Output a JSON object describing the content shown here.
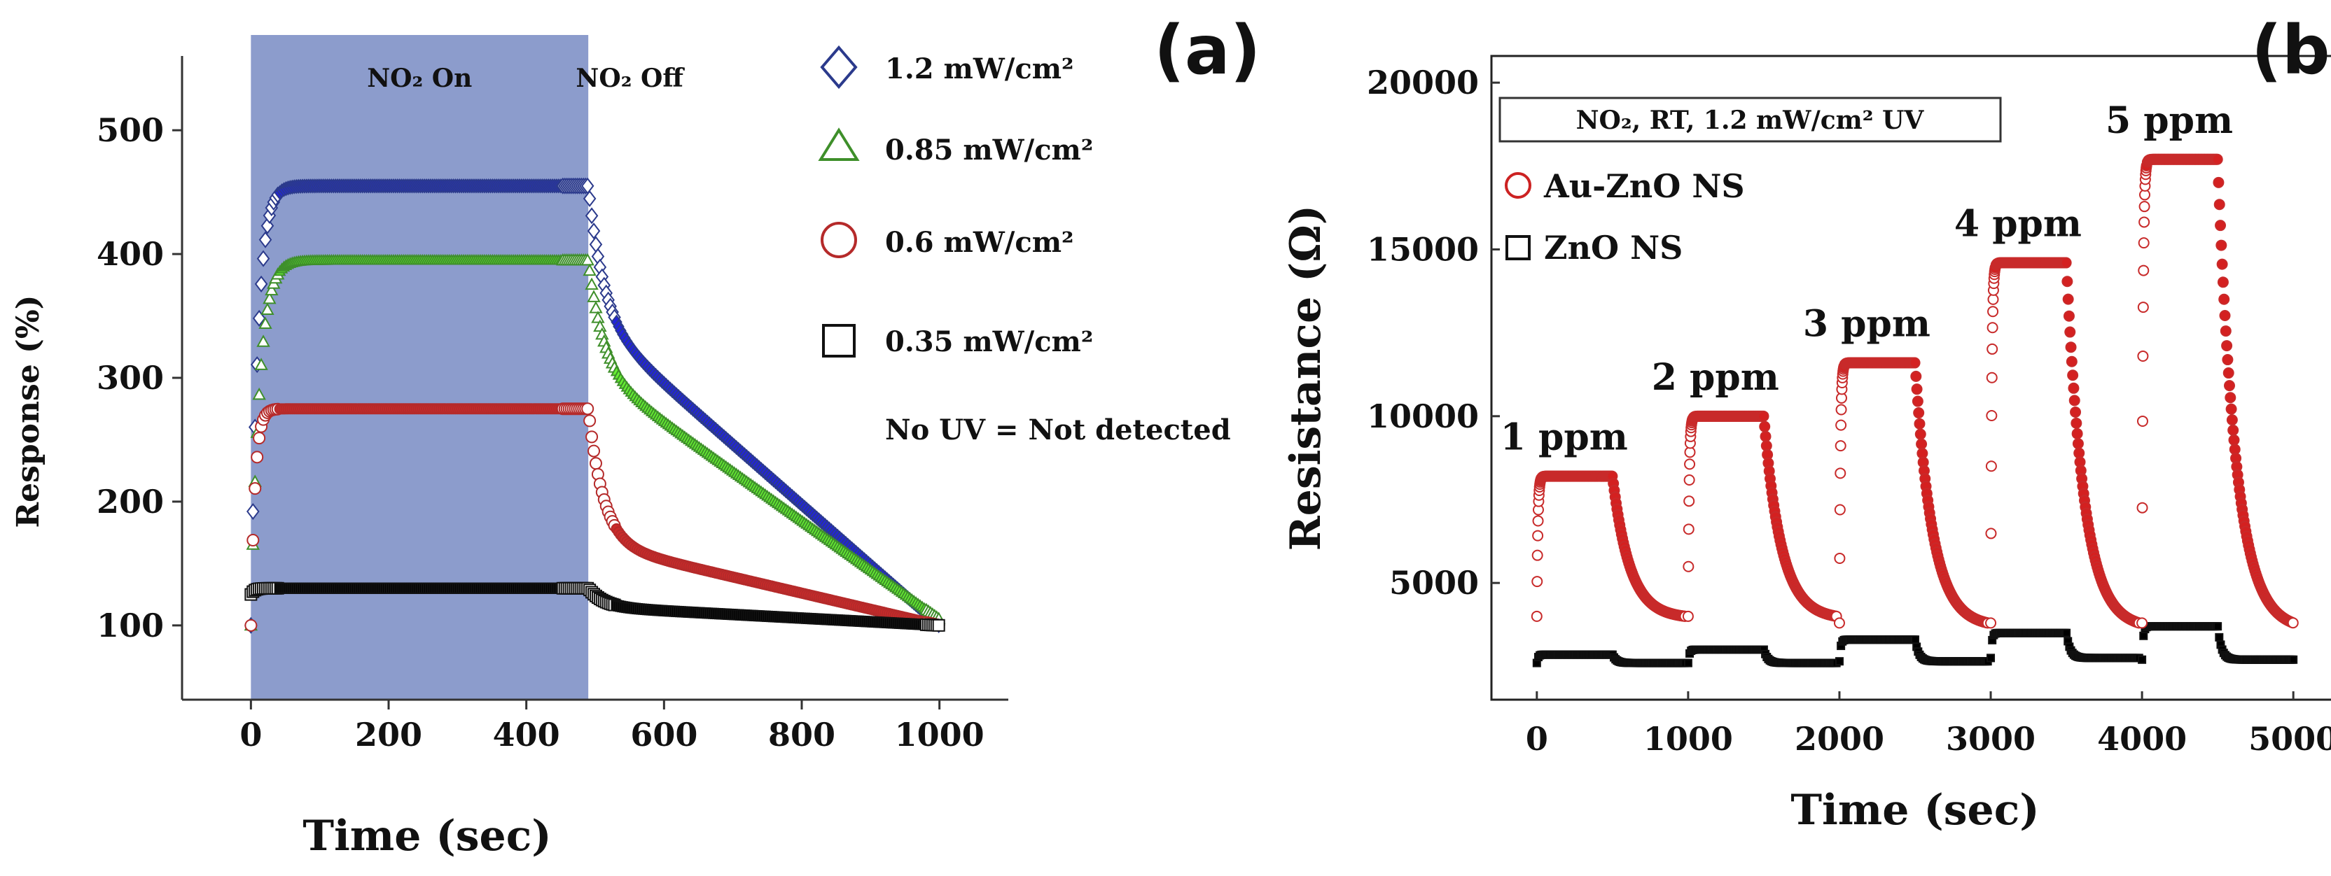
{
  "chart_data": [
    {
      "panel_label": "(a)",
      "type": "scatter",
      "xlabel": "Time (sec)",
      "ylabel": "Response (%)",
      "xlim": [
        -100,
        1100
      ],
      "ylim": [
        40,
        560
      ],
      "xticks": [
        0,
        200,
        400,
        600,
        800,
        1000
      ],
      "yticks": [
        100,
        200,
        300,
        400,
        500
      ],
      "x_tick_labels": [
        "0",
        "200",
        "400",
        "600",
        "800",
        "1000"
      ],
      "y_tick_labels": [
        "100",
        "200",
        "300",
        "400",
        "500"
      ],
      "shaded_region": {
        "x_start": 0,
        "x_end": 490,
        "color": "#8c9ccc"
      },
      "annotations": {
        "on": {
          "text": "NO₂ On",
          "x": 245,
          "y": 535
        },
        "off": {
          "text": "NO₂ Off",
          "x": 550,
          "y": 535
        },
        "no_uv": "No UV = Not detected"
      },
      "series": [
        {
          "name": "1.2 mW/cm²",
          "marker": "diamond",
          "color": "#2222dd",
          "edge": "#2b3a8c",
          "base": 100,
          "plateau": 455,
          "end": 100,
          "tau_on": 10
        },
        {
          "name": "0.85 mW/cm²",
          "marker": "triangle",
          "color": "#66ee33",
          "edge": "#3e8f2a",
          "base": 100,
          "plateau": 395,
          "end": 105,
          "tau_on": 12
        },
        {
          "name": "0.6 mW/cm²",
          "marker": "circle",
          "color": "#cc2a2a",
          "edge": "#b52a2a",
          "base": 100,
          "plateau": 275,
          "end": 100,
          "tau_on": 6
        },
        {
          "name": "0.35 mW/cm²",
          "marker": "square",
          "color": "#000000",
          "edge": "#111111",
          "base": 125,
          "plateau": 130,
          "end": 100,
          "tau_on": 5
        }
      ]
    },
    {
      "panel_label": "(b)",
      "type": "scatter",
      "xlabel": "Time (sec)",
      "ylabel": "Resistance (Ω)",
      "xlim": [
        -300,
        5300
      ],
      "ylim": [
        1500,
        20800
      ],
      "xticks": [
        0,
        1000,
        2000,
        3000,
        4000,
        5000
      ],
      "yticks": [
        5000,
        10000,
        15000,
        20000
      ],
      "x_tick_labels": [
        "0",
        "1000",
        "2000",
        "3000",
        "4000",
        "5000"
      ],
      "y_tick_labels": [
        "5000",
        "10000",
        "15000",
        "20000"
      ],
      "title_box": "NO₂, RT, 1.2 mW/cm² UV",
      "series": [
        {
          "name": "Au-ZnO NS",
          "marker": "circle",
          "color": "#d02020",
          "edge": "#cc2222"
        },
        {
          "name": "ZnO NS",
          "marker": "square",
          "color": "#000000",
          "edge": "#111111"
        }
      ],
      "pulses": [
        {
          "label": "1 ppm",
          "start": 0,
          "on_end": 500,
          "end": 980,
          "au_base": 4000,
          "au_peak": 8200,
          "zno_base": 2600,
          "zno_peak": 2850
        },
        {
          "label": "2 ppm",
          "start": 1000,
          "on_end": 1500,
          "end": 1980,
          "au_base": 4000,
          "au_peak": 10000,
          "zno_base": 2600,
          "zno_peak": 3000
        },
        {
          "label": "3 ppm",
          "start": 2000,
          "on_end": 2500,
          "end": 2980,
          "au_base": 3800,
          "au_peak": 11600,
          "zno_base": 2650,
          "zno_peak": 3300
        },
        {
          "label": "4 ppm",
          "start": 3000,
          "on_end": 3500,
          "end": 3980,
          "au_base": 3800,
          "au_peak": 14600,
          "zno_base": 2750,
          "zno_peak": 3500
        },
        {
          "label": "5 ppm",
          "start": 4000,
          "on_end": 4500,
          "end": 5000,
          "au_base": 3800,
          "au_peak": 17700,
          "zno_base": 2700,
          "zno_peak": 3700
        }
      ]
    }
  ]
}
